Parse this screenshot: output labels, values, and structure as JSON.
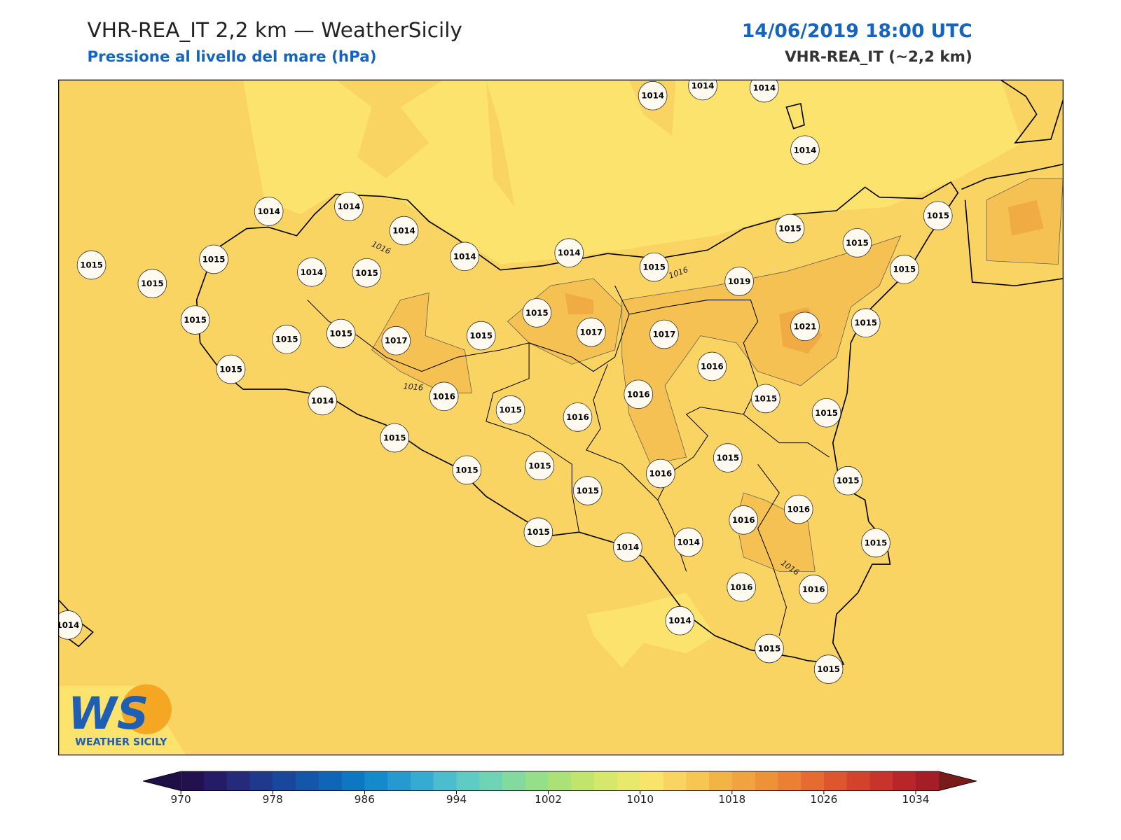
{
  "header": {
    "title": "VHR-REA_IT 2,2 km — WeatherSicily",
    "subtitle": "Pressione al livello del mare (hPa)",
    "datetime": "14/06/2019 18:00 UTC",
    "model": "VHR-REA_IT (~2,2 km)"
  },
  "stations": [
    1014,
    1014,
    1014,
    1014,
    1014,
    1014,
    1014,
    1014,
    1014,
    1015,
    1015,
    1015,
    1015,
    1015,
    1019,
    1015,
    1015,
    1015,
    1014,
    1015,
    1015,
    1015,
    1015,
    1017,
    1015,
    1015,
    1017,
    1017,
    1021,
    1015,
    1015,
    1016,
    1016,
    1015,
    1015,
    1014,
    1016,
    1015,
    1016,
    1015,
    1015,
    1015,
    1015,
    1016,
    1015,
    1015,
    1016,
    1016,
    1015,
    1014,
    1014,
    1015,
    1016,
    1016,
    1014,
    1014,
    1015,
    1015
  ],
  "contour_labels": [
    "1016",
    "1016",
    "1016",
    "1016"
  ],
  "colorbar": {
    "lim": [
      970,
      1036
    ],
    "ticks": [
      970,
      978,
      986,
      994,
      1002,
      1010,
      1018,
      1026,
      1034
    ],
    "colors": [
      "#22104f",
      "#261b66",
      "#252a7a",
      "#1f3a8c",
      "#18479c",
      "#1456aa",
      "#0f66b8",
      "#0c78c4",
      "#1489cc",
      "#2599d0",
      "#36abd2",
      "#4cbdcf",
      "#5ecbc5",
      "#6fd4b3",
      "#82da9e",
      "#95df89",
      "#abe278",
      "#c1e46d",
      "#d6e86c",
      "#e8e86c",
      "#f8e46a",
      "#fad462",
      "#f7c552",
      "#f3b446",
      "#f0a33e",
      "#ee9238",
      "#eb7f34",
      "#e66b30",
      "#dd562d",
      "#d3432c",
      "#c8332b",
      "#b82629",
      "#a51d27"
    ],
    "under_color": "#1e1046",
    "over_color": "#7a1b1b"
  },
  "logo": {
    "mark": "WS",
    "text": "WEATHER SICILY"
  }
}
